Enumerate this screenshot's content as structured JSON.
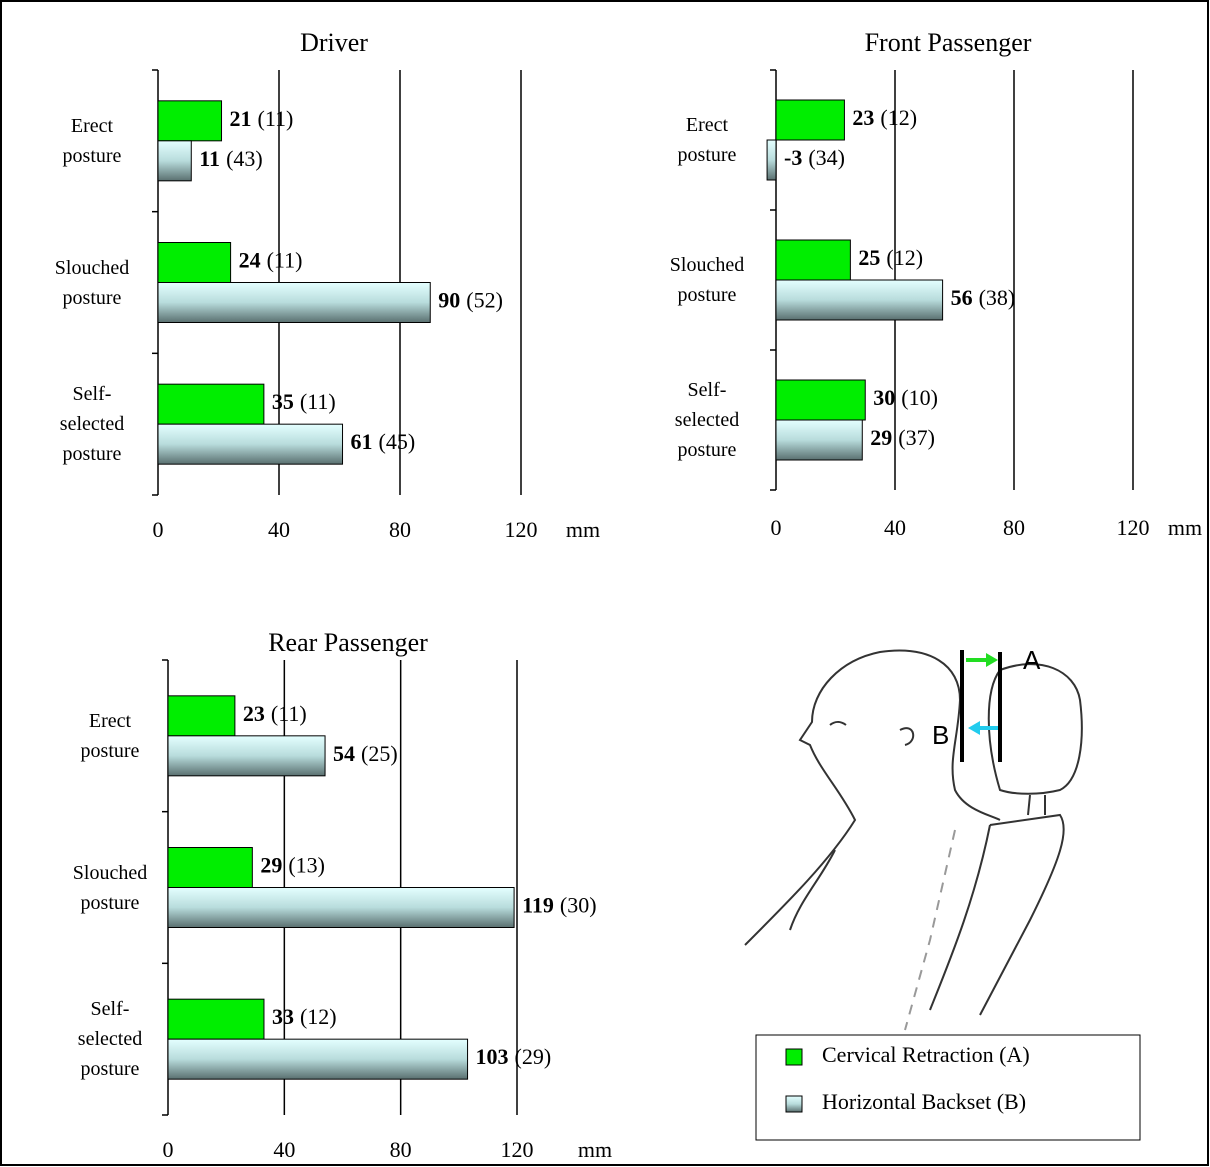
{
  "chart_data": [
    {
      "type": "bar",
      "orientation": "horizontal",
      "title": "Driver",
      "categories": [
        "Erect\nposture",
        "Slouched\nposture",
        "Self-\nselected\nposture"
      ],
      "series": [
        {
          "color": "#00ee00",
          "values": [
            21,
            24,
            35
          ],
          "sd_labels": [
            "(11)",
            "(11)",
            "(11)"
          ]
        },
        {
          "color": "#d8ffff",
          "values": [
            11,
            90,
            61
          ],
          "sd_labels": [
            "(43)",
            "(52)",
            "(45)"
          ]
        }
      ],
      "xlim": [
        0,
        120
      ],
      "xticks": [
        0,
        40,
        80,
        120
      ],
      "xlabel": "mm",
      "grid": true
    },
    {
      "type": "bar",
      "orientation": "horizontal",
      "title": "Front Passenger",
      "categories": [
        "Erect\nposture",
        "Slouched\nposture",
        "Self-\nselected\nposture"
      ],
      "series": [
        {
          "color": "#00ee00",
          "values": [
            23,
            25,
            30
          ],
          "sd_labels": [
            "(12)",
            "(12)",
            "(10)"
          ]
        },
        {
          "color": "#d8ffff",
          "values": [
            -3,
            56,
            29
          ],
          "sd_labels": [
            "(34)",
            "(38)",
            "(37)"
          ]
        }
      ],
      "xlim": [
        0,
        120
      ],
      "xticks": [
        0,
        40,
        80,
        120
      ],
      "xlabel": "mm",
      "grid": true
    },
    {
      "type": "bar",
      "orientation": "horizontal",
      "title": "Rear Passenger",
      "categories": [
        "Erect\nposture",
        "Slouched\nposture",
        "Self-\nselected\nposture"
      ],
      "series": [
        {
          "color": "#00ee00",
          "values": [
            23,
            29,
            33
          ],
          "sd_labels": [
            "(11)",
            "(13)",
            "(12)"
          ]
        },
        {
          "color": "#d8ffff",
          "values": [
            54,
            119,
            103
          ],
          "sd_labels": [
            "(25)",
            "(30)",
            "(29)"
          ]
        }
      ],
      "xlim": [
        0,
        120
      ],
      "xticks": [
        0,
        40,
        80,
        120
      ],
      "xlabel": "mm",
      "grid": true
    }
  ],
  "legend": [
    {
      "label": "Cervical Retraction (A)",
      "color": "#00ee00"
    },
    {
      "label": "Horizontal Backset (B)",
      "color": "#d8ffff"
    }
  ],
  "diagram": {
    "label_a": "A",
    "label_b": "B"
  }
}
